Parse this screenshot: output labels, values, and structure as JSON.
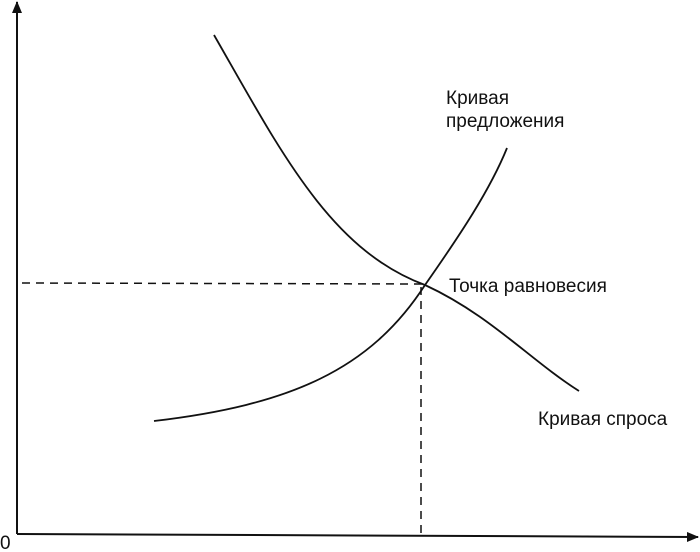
{
  "diagram": {
    "origin_label": "0",
    "supply_label_line1": "Кривая",
    "supply_label_line2": "предложения",
    "equilibrium_label": "Точка равновесия",
    "demand_label": "Кривая спроса",
    "line_color": "#111111"
  }
}
